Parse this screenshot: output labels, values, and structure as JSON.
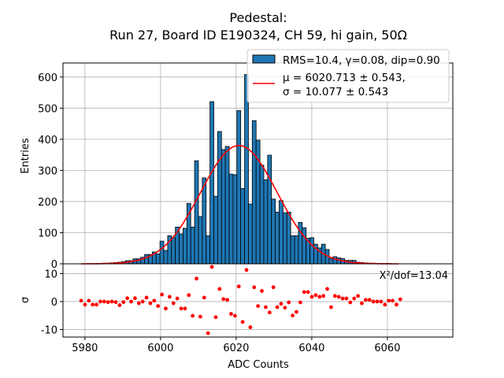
{
  "chart_data": [
    {
      "type": "bar",
      "title_line1": "Pedestal:",
      "title_line2": "Run 27, Board ID E190324, CH 59, hi gain, 50Ω",
      "xlabel": "ADC Counts",
      "ylabel": "Entries",
      "xlim": [
        5974.2,
        6077.3
      ],
      "ylim": [
        0,
        645
      ],
      "xticks": [
        5980,
        6000,
        6020,
        6040,
        6060
      ],
      "yticks": [
        0,
        100,
        200,
        300,
        400,
        500,
        600
      ],
      "grid": true,
      "bin_start": 5979.0,
      "bin_width": 1.017,
      "values": [
        0,
        0,
        0,
        0,
        1,
        1,
        2,
        2,
        3,
        4,
        5,
        7,
        10,
        10,
        16,
        16,
        21,
        30,
        30,
        38,
        32,
        73,
        43,
        90,
        84,
        118,
        96,
        114,
        194,
        118,
        331,
        152,
        276,
        90,
        521,
        217,
        425,
        367,
        377,
        288,
        286,
        492,
        242,
        608,
        192,
        460,
        397,
        317,
        270,
        349,
        208,
        166,
        203,
        164,
        166,
        90,
        90,
        133,
        116,
        82,
        84,
        63,
        51,
        63,
        46,
        17,
        23,
        19,
        17,
        11,
        11,
        11,
        5,
        4,
        3,
        2,
        2,
        1,
        1,
        1,
        1,
        0,
        0,
        0
      ],
      "fit": {
        "type": "gaussian",
        "mu": 6020.713,
        "sigma": 10.077,
        "amplitude": 380,
        "range": [
          5979,
          6063
        ]
      },
      "legend": {
        "placement": "top-right",
        "entries": [
          {
            "label": "RMS=10.4, γ=0.08, dip=0.90",
            "color": "#1f77b4"
          },
          {
            "label_line1": "μ = 6020.713 ± 0.543,",
            "label_line2": "σ = 10.077 ± 0.543",
            "color": "#ff0000"
          }
        ]
      },
      "bar_color": "#1f77b4"
    },
    {
      "type": "scatter",
      "ylabel": "σ",
      "xlabel": "ADC Counts",
      "ylim": [
        -12.7,
        13.5
      ],
      "yticks": [
        -10,
        0,
        10
      ],
      "annotation": "X²/dof=13.04",
      "color": "#ff0000",
      "x_start": 5979.0,
      "x_step": 1.017,
      "values": [
        0.3,
        -1.1,
        0.3,
        -1.1,
        -1.1,
        0,
        0,
        -0.2,
        0,
        -0.2,
        -1.3,
        -0.2,
        1.2,
        0,
        1.2,
        -0.6,
        0,
        1.4,
        -0.6,
        0.3,
        -1.6,
        2.5,
        -2.5,
        1.7,
        -0.6,
        1.1,
        -2.5,
        -2.5,
        2.3,
        -5.1,
        8.2,
        -5.4,
        1.4,
        -11.3,
        12.4,
        -5.6,
        4.5,
        0.9,
        0.6,
        -4.4,
        -5.1,
        5.4,
        -7.3,
        11.3,
        -9.2,
        5.1,
        -1.6,
        3.8,
        -2,
        -3.9,
        5.1,
        -2,
        -0.8,
        -2.2,
        -0.3,
        -5,
        -3.7,
        -0.3,
        3.4,
        3.4,
        1.7,
        2.3,
        1.7,
        2,
        4.5,
        -2,
        2,
        1.7,
        1.1,
        1.1,
        -0.3,
        1.1,
        2,
        -0.6,
        0.6,
        0.6,
        0,
        0,
        0,
        -1.1,
        0.3,
        0.3,
        -1.1,
        0.8
      ]
    }
  ]
}
